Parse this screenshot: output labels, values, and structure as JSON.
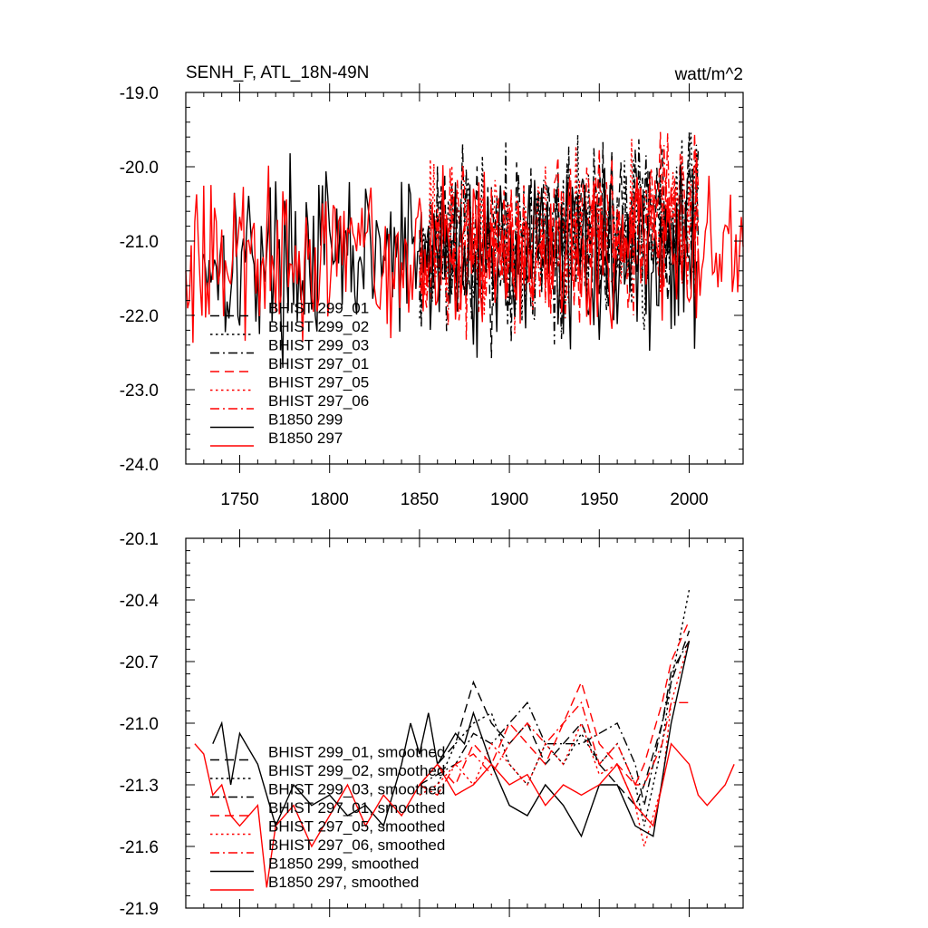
{
  "chart_data": [
    {
      "type": "line",
      "title": "SENH_F, ATL_18N-49N",
      "units": "watt/m^2",
      "xlim": [
        1720,
        2030
      ],
      "ylim": [
        -24.0,
        -19.0
      ],
      "x_ticks": [
        1750,
        1800,
        1850,
        1900,
        1950,
        2000
      ],
      "x_tick_labels": [
        "1750",
        "1800",
        "1850",
        "1900",
        "1950",
        "2000"
      ],
      "y_ticks": [
        -24.0,
        -23.0,
        -22.0,
        -21.0,
        -20.0,
        -19.0
      ],
      "y_tick_labels": [
        "-24.0",
        "-23.0",
        "-22.0",
        "-21.0",
        "-20.0",
        "-19.0"
      ],
      "legend_position": "lower-left",
      "series": [
        {
          "name": "BHIST 299_01",
          "color": "#000000",
          "dash": "longdash",
          "x_range": [
            1850,
            2005
          ],
          "mean": -21.1,
          "amplitude": 0.55,
          "trend": 0.5,
          "seed": 11
        },
        {
          "name": "BHIST 299_02",
          "color": "#000000",
          "dash": "dot",
          "x_range": [
            1850,
            2005
          ],
          "mean": -21.1,
          "amplitude": 0.55,
          "trend": 0.5,
          "seed": 12
        },
        {
          "name": "BHIST 299_03",
          "color": "#000000",
          "dash": "dashdot",
          "x_range": [
            1850,
            2005
          ],
          "mean": -21.1,
          "amplitude": 0.55,
          "trend": 0.5,
          "seed": 13
        },
        {
          "name": "BHIST 297_01",
          "color": "#ff0000",
          "dash": "longdash",
          "x_range": [
            1850,
            2005
          ],
          "mean": -21.1,
          "amplitude": 0.5,
          "trend": 0.5,
          "seed": 14
        },
        {
          "name": "BHIST 297_05",
          "color": "#ff0000",
          "dash": "dot",
          "x_range": [
            1850,
            2005
          ],
          "mean": -21.1,
          "amplitude": 0.5,
          "trend": 0.5,
          "seed": 15
        },
        {
          "name": "BHIST 297_06",
          "color": "#ff0000",
          "dash": "dashdot",
          "x_range": [
            1850,
            2005
          ],
          "mean": -21.1,
          "amplitude": 0.5,
          "trend": 0.5,
          "seed": 16
        },
        {
          "name": "B1850 299",
          "color": "#000000",
          "dash": "solid",
          "x_range": [
            1730,
            2005
          ],
          "mean": -21.2,
          "amplitude": 0.55,
          "trend": 0.0,
          "seed": 17
        },
        {
          "name": "B1850 297",
          "color": "#ff0000",
          "dash": "solid",
          "x_range": [
            1720,
            2030
          ],
          "mean": -21.2,
          "amplitude": 0.5,
          "trend": 0.0,
          "seed": 18
        }
      ]
    },
    {
      "type": "line",
      "title": "",
      "xlim": [
        1720,
        2030
      ],
      "ylim": [
        -21.9,
        -20.1
      ],
      "x_ticks": [
        1750,
        1800,
        1850,
        1900,
        1950,
        2000
      ],
      "y_ticks": [
        -21.9,
        -21.6,
        -21.3,
        -21.0,
        -20.7,
        -20.4,
        -20.1
      ],
      "y_tick_labels": [
        "-21.9",
        "-21.6",
        "-21.3",
        "-21.0",
        "-20.7",
        "-20.4",
        "-20.1"
      ],
      "legend_position": "lower-left",
      "series": [
        {
          "name": "BHIST 299_01, smoothed",
          "color": "#000000",
          "dash": "longdash",
          "points": [
            [
              1850,
              -21.3
            ],
            [
              1860,
              -21.2
            ],
            [
              1870,
              -21.1
            ],
            [
              1880,
              -20.8
            ],
            [
              1885,
              -20.9
            ],
            [
              1890,
              -21.0
            ],
            [
              1900,
              -21.1
            ],
            [
              1910,
              -21.0
            ],
            [
              1920,
              -21.2
            ],
            [
              1930,
              -21.1
            ],
            [
              1940,
              -21.0
            ],
            [
              1950,
              -21.2
            ],
            [
              1960,
              -21.3
            ],
            [
              1970,
              -21.4
            ],
            [
              1975,
              -21.3
            ],
            [
              1985,
              -21.0
            ],
            [
              1990,
              -20.8
            ],
            [
              2000,
              -20.55
            ]
          ]
        },
        {
          "name": "BHIST 299_02, smoothed",
          "color": "#000000",
          "dash": "dot",
          "points": [
            [
              1850,
              -21.35
            ],
            [
              1860,
              -21.3
            ],
            [
              1870,
              -21.1
            ],
            [
              1880,
              -21.0
            ],
            [
              1890,
              -20.95
            ],
            [
              1900,
              -21.2
            ],
            [
              1910,
              -21.3
            ],
            [
              1920,
              -21.1
            ],
            [
              1930,
              -21.2
            ],
            [
              1940,
              -21.05
            ],
            [
              1950,
              -21.2
            ],
            [
              1960,
              -21.1
            ],
            [
              1970,
              -21.3
            ],
            [
              1975,
              -21.5
            ],
            [
              1985,
              -21.1
            ],
            [
              1990,
              -20.8
            ],
            [
              2000,
              -20.35
            ]
          ]
        },
        {
          "name": "BHIST 299_03, smoothed",
          "color": "#000000",
          "dash": "dashdot",
          "points": [
            [
              1850,
              -21.3
            ],
            [
              1860,
              -21.25
            ],
            [
              1870,
              -21.2
            ],
            [
              1880,
              -21.05
            ],
            [
              1890,
              -21.1
            ],
            [
              1900,
              -21.0
            ],
            [
              1910,
              -20.9
            ],
            [
              1920,
              -21.1
            ],
            [
              1930,
              -21.1
            ],
            [
              1940,
              -21.1
            ],
            [
              1950,
              -21.05
            ],
            [
              1960,
              -21.0
            ],
            [
              1970,
              -21.2
            ],
            [
              1975,
              -21.4
            ],
            [
              1985,
              -21.0
            ],
            [
              1990,
              -20.75
            ],
            [
              2000,
              -20.6
            ]
          ]
        },
        {
          "name": "BHIST 297_01, smoothed",
          "color": "#ff0000",
          "dash": "longdash",
          "points": [
            [
              1850,
              -21.3
            ],
            [
              1860,
              -21.2
            ],
            [
              1870,
              -21.3
            ],
            [
              1880,
              -21.1
            ],
            [
              1890,
              -21.2
            ],
            [
              1900,
              -21.0
            ],
            [
              1910,
              -21.1
            ],
            [
              1920,
              -21.2
            ],
            [
              1930,
              -21.0
            ],
            [
              1940,
              -20.8
            ],
            [
              1950,
              -21.1
            ],
            [
              1960,
              -21.2
            ],
            [
              1970,
              -21.3
            ],
            [
              1975,
              -21.2
            ],
            [
              1985,
              -20.9
            ],
            [
              1990,
              -20.7
            ],
            [
              2000,
              -20.5
            ]
          ]
        },
        {
          "name": "BHIST 297_05, smoothed",
          "color": "#ff0000",
          "dash": "dot",
          "points": [
            [
              1850,
              -21.35
            ],
            [
              1860,
              -21.3
            ],
            [
              1870,
              -21.2
            ],
            [
              1880,
              -21.3
            ],
            [
              1890,
              -21.1
            ],
            [
              1900,
              -21.2
            ],
            [
              1910,
              -21.3
            ],
            [
              1920,
              -21.1
            ],
            [
              1930,
              -21.2
            ],
            [
              1940,
              -21.0
            ],
            [
              1950,
              -21.25
            ],
            [
              1960,
              -21.2
            ],
            [
              1970,
              -21.4
            ],
            [
              1975,
              -21.6
            ],
            [
              1985,
              -21.3
            ],
            [
              1990,
              -20.9
            ],
            [
              2000,
              -20.6
            ]
          ]
        },
        {
          "name": "BHIST 297_06, smoothed",
          "color": "#ff0000",
          "dash": "dashdot",
          "points": [
            [
              1850,
              -21.3
            ],
            [
              1860,
              -21.35
            ],
            [
              1870,
              -21.2
            ],
            [
              1880,
              -21.15
            ],
            [
              1890,
              -21.25
            ],
            [
              1900,
              -21.1
            ],
            [
              1910,
              -21.0
            ],
            [
              1920,
              -21.1
            ],
            [
              1930,
              -21.0
            ],
            [
              1940,
              -20.9
            ],
            [
              1950,
              -21.2
            ],
            [
              1960,
              -21.1
            ],
            [
              1970,
              -21.3
            ],
            [
              1975,
              -21.3
            ],
            [
              1985,
              -21.1
            ],
            [
              1990,
              -20.9
            ],
            [
              2000,
              -20.9
            ]
          ]
        },
        {
          "name": "B1850 299, smoothed",
          "color": "#000000",
          "dash": "solid",
          "points": [
            [
              1735,
              -21.1
            ],
            [
              1740,
              -21.0
            ],
            [
              1745,
              -21.3
            ],
            [
              1750,
              -21.05
            ],
            [
              1760,
              -21.2
            ],
            [
              1770,
              -21.5
            ],
            [
              1780,
              -21.3
            ],
            [
              1790,
              -21.4
            ],
            [
              1800,
              -21.35
            ],
            [
              1810,
              -21.45
            ],
            [
              1820,
              -21.4
            ],
            [
              1830,
              -21.5
            ],
            [
              1840,
              -21.2
            ],
            [
              1845,
              -21.0
            ],
            [
              1850,
              -21.15
            ],
            [
              1855,
              -20.95
            ],
            [
              1860,
              -21.2
            ],
            [
              1870,
              -21.05
            ],
            [
              1875,
              -21.1
            ],
            [
              1880,
              -20.95
            ],
            [
              1890,
              -21.2
            ],
            [
              1900,
              -21.4
            ],
            [
              1910,
              -21.45
            ],
            [
              1920,
              -21.3
            ],
            [
              1930,
              -21.4
            ],
            [
              1940,
              -21.55
            ],
            [
              1950,
              -21.3
            ],
            [
              1960,
              -21.3
            ],
            [
              1970,
              -21.5
            ],
            [
              1980,
              -21.55
            ],
            [
              1990,
              -21.0
            ],
            [
              2000,
              -20.6
            ]
          ]
        },
        {
          "name": "B1850 297, smoothed",
          "color": "#ff0000",
          "dash": "solid",
          "points": [
            [
              1725,
              -21.1
            ],
            [
              1730,
              -21.15
            ],
            [
              1735,
              -21.35
            ],
            [
              1740,
              -21.3
            ],
            [
              1745,
              -21.45
            ],
            [
              1750,
              -21.5
            ],
            [
              1760,
              -21.4
            ],
            [
              1765,
              -21.8
            ],
            [
              1770,
              -21.5
            ],
            [
              1780,
              -21.4
            ],
            [
              1790,
              -21.6
            ],
            [
              1800,
              -21.45
            ],
            [
              1810,
              -21.3
            ],
            [
              1820,
              -21.5
            ],
            [
              1830,
              -21.35
            ],
            [
              1840,
              -21.45
            ],
            [
              1850,
              -21.3
            ],
            [
              1860,
              -21.2
            ],
            [
              1870,
              -21.35
            ],
            [
              1880,
              -21.3
            ],
            [
              1890,
              -21.2
            ],
            [
              1900,
              -21.3
            ],
            [
              1910,
              -21.25
            ],
            [
              1920,
              -21.4
            ],
            [
              1930,
              -21.3
            ],
            [
              1940,
              -21.35
            ],
            [
              1950,
              -21.3
            ],
            [
              1960,
              -21.2
            ],
            [
              1970,
              -21.4
            ],
            [
              1980,
              -21.5
            ],
            [
              1990,
              -21.1
            ],
            [
              2000,
              -21.2
            ],
            [
              2005,
              -21.35
            ],
            [
              2010,
              -21.4
            ],
            [
              2020,
              -21.3
            ],
            [
              2025,
              -21.2
            ]
          ]
        }
      ]
    }
  ]
}
